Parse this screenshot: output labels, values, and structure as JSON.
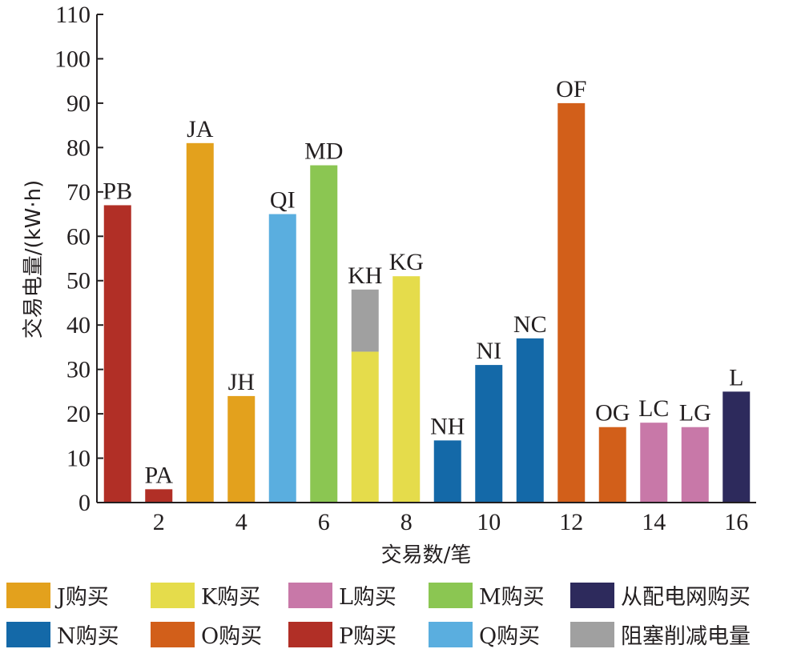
{
  "chart_data": {
    "type": "bar",
    "xlabel": "交易数/笔",
    "ylabel": "交易电量/(kW·h)",
    "ylim": [
      0,
      110
    ],
    "y_ticks": [
      0,
      10,
      20,
      30,
      40,
      50,
      60,
      70,
      80,
      90,
      100,
      110
    ],
    "x_ticks": [
      2,
      4,
      6,
      8,
      10,
      12,
      14,
      16
    ],
    "grid": false,
    "legend_position": "bottom",
    "colors": {
      "J购买": "#e3a11d",
      "K购买": "#e5dc4b",
      "L购买": "#c878a8",
      "M购买": "#8bc652",
      "从配电网购买": "#2d2a5c",
      "N购买": "#1469a8",
      "O购买": "#d25f1a",
      "P购买": "#b12f26",
      "Q购买": "#5aaedf",
      "阻塞削减电量": "#a0a0a0"
    },
    "legend": [
      [
        "J购买",
        "K购买",
        "L购买",
        "M购买",
        "从配电网购买"
      ],
      [
        "N购买",
        "O购买",
        "P购买",
        "Q购买",
        "阻塞削减电量"
      ]
    ],
    "bars": [
      {
        "x": 1,
        "label": "PB",
        "value": 67,
        "series": "P购买"
      },
      {
        "x": 2,
        "label": "PA",
        "value": 3,
        "series": "P购买"
      },
      {
        "x": 3,
        "label": "JA",
        "value": 81,
        "series": "J购买"
      },
      {
        "x": 4,
        "label": "JH",
        "value": 24,
        "series": "J购买"
      },
      {
        "x": 5,
        "label": "QI",
        "value": 65,
        "series": "Q购买"
      },
      {
        "x": 6,
        "label": "MD",
        "value": 76,
        "series": "M购买"
      },
      {
        "x": 7,
        "label": "KH",
        "value": 34,
        "series": "K购买",
        "stack": {
          "value": 14,
          "series": "阻塞削减电量"
        }
      },
      {
        "x": 8,
        "label": "KG",
        "value": 51,
        "series": "K购买"
      },
      {
        "x": 9,
        "label": "NH",
        "value": 14,
        "series": "N购买"
      },
      {
        "x": 10,
        "label": "NI",
        "value": 31,
        "series": "N购买"
      },
      {
        "x": 11,
        "label": "NC",
        "value": 37,
        "series": "N购买"
      },
      {
        "x": 12,
        "label": "OF",
        "value": 90,
        "series": "O购买"
      },
      {
        "x": 13,
        "label": "OG",
        "value": 17,
        "series": "O购买"
      },
      {
        "x": 14,
        "label": "LC",
        "value": 18,
        "series": "L购买"
      },
      {
        "x": 15,
        "label": "LG",
        "value": 17,
        "series": "L购买"
      },
      {
        "x": 16,
        "label": "L",
        "value": 25,
        "series": "从配电网购买"
      }
    ]
  }
}
